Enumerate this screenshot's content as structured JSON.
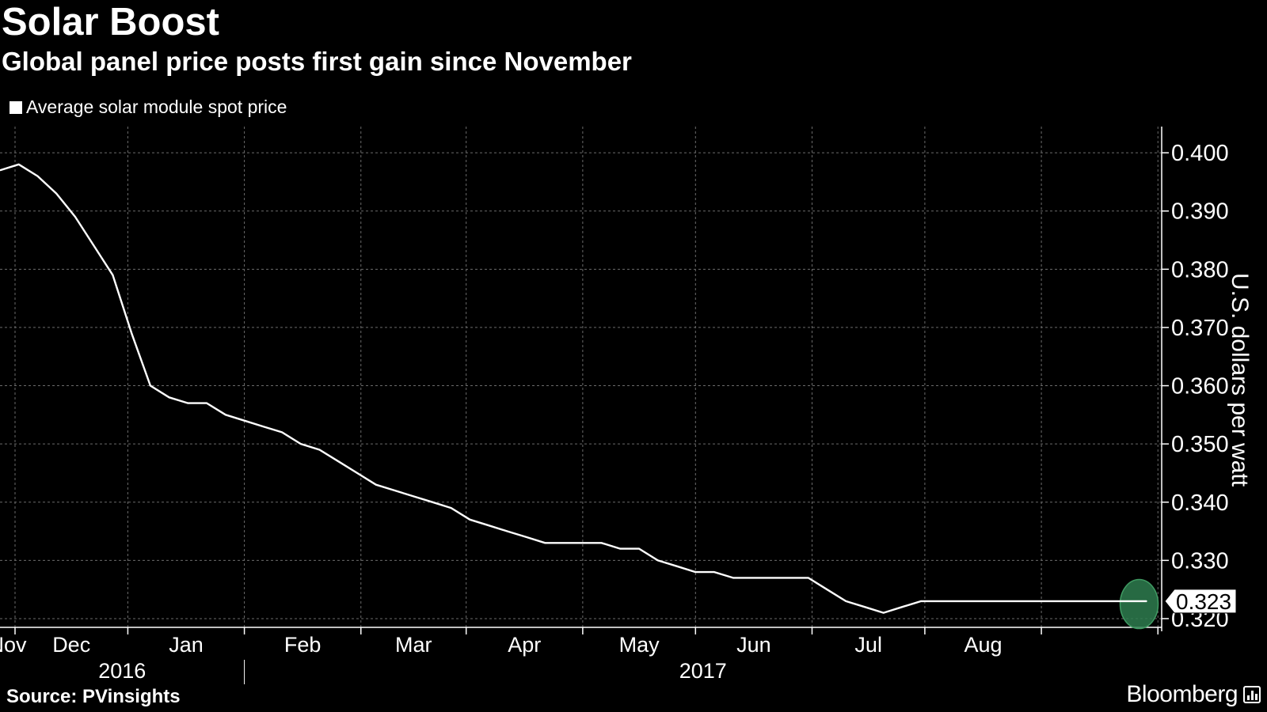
{
  "title": "Solar Boost",
  "subtitle": "Global panel price posts first gain since November",
  "legend": {
    "label": "Average solar module spot price",
    "color": "#ffffff"
  },
  "source": "Source: PVinsights",
  "brand": "Bloomberg",
  "brand_icon": "bloomberg-terminal-icon",
  "colors": {
    "background": "#000000",
    "line": "#ffffff",
    "grid": "#6b6b6b",
    "highlight": "#2e7d4f"
  },
  "chart_data": {
    "type": "line",
    "title": "Solar Boost",
    "subtitle": "Global panel price posts first gain since November",
    "xlabel": "",
    "ylabel": "U.S. dollars per watt",
    "ylim": [
      0.3185,
      0.4045
    ],
    "yaxis_side": "right",
    "grid": true,
    "legend_position": "top-left",
    "y_ticks": [
      "0.400",
      "0.390",
      "0.380",
      "0.370",
      "0.360",
      "0.350",
      "0.340",
      "0.330",
      "0.320"
    ],
    "x_ticks": [
      "Nov",
      "Dec",
      "Jan",
      "Feb",
      "Mar",
      "Apr",
      "May",
      "Jun",
      "Jul",
      "Aug"
    ],
    "year_labels": [
      "2016",
      "2017"
    ],
    "x_start": "2016-10-28",
    "x_end": "2017-09-02",
    "series": [
      {
        "name": "Average solar module spot price",
        "x": [
          "2016-10-28",
          "2016-11-02",
          "2016-11-07",
          "2016-11-12",
          "2016-11-17",
          "2016-11-22",
          "2016-11-27",
          "2016-12-02",
          "2016-12-07",
          "2016-12-12",
          "2016-12-17",
          "2016-12-22",
          "2016-12-27",
          "2017-01-01",
          "2017-01-06",
          "2017-01-11",
          "2017-01-16",
          "2017-01-21",
          "2017-01-26",
          "2017-01-31",
          "2017-02-05",
          "2017-02-10",
          "2017-02-15",
          "2017-02-20",
          "2017-02-25",
          "2017-03-02",
          "2017-03-07",
          "2017-03-12",
          "2017-03-17",
          "2017-03-22",
          "2017-03-27",
          "2017-04-01",
          "2017-04-06",
          "2017-04-11",
          "2017-04-16",
          "2017-04-21",
          "2017-04-26",
          "2017-05-01",
          "2017-05-06",
          "2017-05-11",
          "2017-05-16",
          "2017-05-21",
          "2017-05-26",
          "2017-05-31",
          "2017-06-05",
          "2017-06-10",
          "2017-06-15",
          "2017-06-20",
          "2017-06-25",
          "2017-06-30",
          "2017-07-05",
          "2017-07-10",
          "2017-07-15",
          "2017-07-20",
          "2017-07-25",
          "2017-07-30",
          "2017-08-04",
          "2017-08-09",
          "2017-08-14",
          "2017-08-19",
          "2017-08-24",
          "2017-08-29"
        ],
        "y": [
          0.397,
          0.398,
          0.396,
          0.393,
          0.389,
          0.384,
          0.379,
          0.369,
          0.36,
          0.358,
          0.357,
          0.357,
          0.355,
          0.354,
          0.353,
          0.352,
          0.35,
          0.349,
          0.347,
          0.345,
          0.343,
          0.342,
          0.341,
          0.34,
          0.339,
          0.337,
          0.336,
          0.335,
          0.334,
          0.333,
          0.333,
          0.333,
          0.333,
          0.332,
          0.332,
          0.33,
          0.329,
          0.328,
          0.328,
          0.327,
          0.327,
          0.327,
          0.327,
          0.327,
          0.325,
          0.323,
          0.322,
          0.321,
          0.322,
          0.323,
          0.323,
          0.323,
          0.323,
          0.323,
          0.323,
          0.323,
          0.323,
          0.323,
          0.323,
          0.323,
          0.323,
          0.323
        ]
      }
    ],
    "last_value_label": "0.323",
    "highlight": {
      "date": "2017-08-27",
      "value": 0.3225
    }
  }
}
